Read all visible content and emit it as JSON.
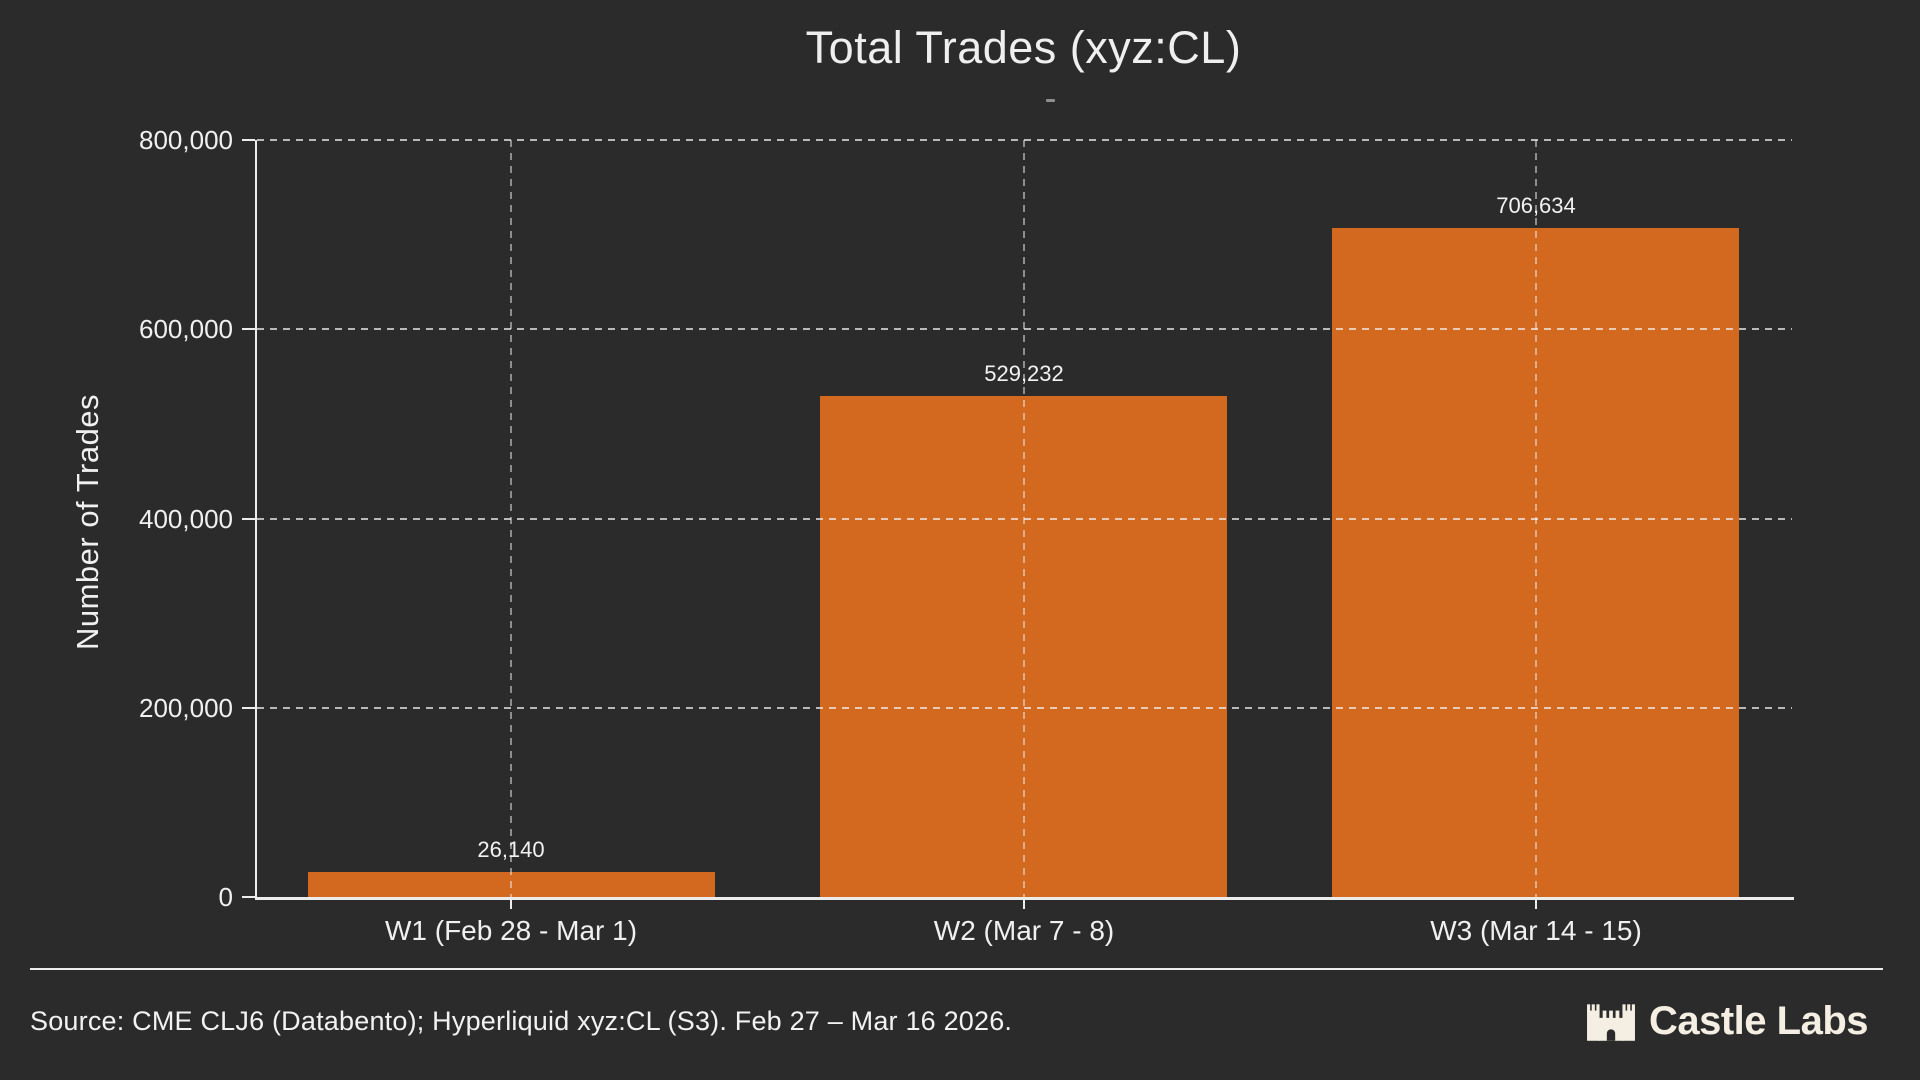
{
  "chart_data": {
    "type": "bar",
    "title": "Total Trades (xyz:CL)",
    "ylabel": "Number of Trades",
    "xlabel": "",
    "categories": [
      "W1 (Feb 28 - Mar 1)",
      "W2 (Mar 7 - 8)",
      "W3 (Mar 14 - 15)"
    ],
    "values": [
      26140,
      529232,
      706634
    ],
    "value_labels": [
      "26,140",
      "529,232",
      "706,634"
    ],
    "ylim": [
      0,
      800000
    ],
    "yticks": [
      0,
      200000,
      400000,
      600000,
      800000
    ],
    "ytick_labels": [
      "0",
      "200,000",
      "400,000",
      "600,000",
      "800,000"
    ],
    "grid": "dashed horizontal gridlines at y ticks; dashed vertical gridlines at bar centers",
    "legend": "none",
    "bar_color": "#d2691e"
  },
  "footer": {
    "source_note": "Source: CME CLJ6 (Databento); Hyperliquid xyz:CL (S3). Feb 27 – Mar 16 2026.",
    "brand_name": "Castle Labs"
  },
  "colors": {
    "background": "#2b2b2b",
    "bar": "#d2691e",
    "text": "#f0f0f0",
    "axis": "#ececec",
    "grid": "#f0f0f0",
    "brand_text": "#f4eee3"
  }
}
